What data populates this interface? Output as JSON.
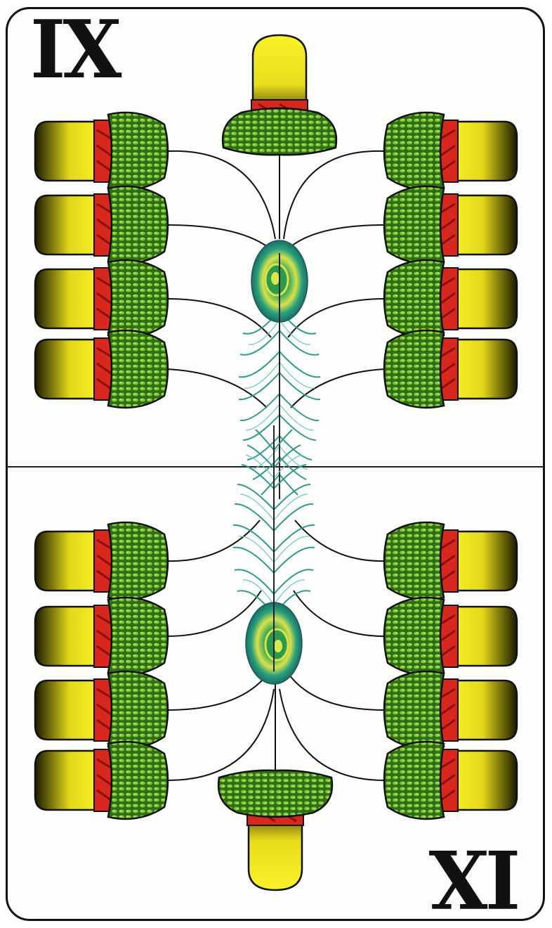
{
  "card": {
    "rank_top": "IX",
    "rank_bottom": "IX",
    "suit": "acorns",
    "acorn_count": 18,
    "colors": {
      "acorn_nut": "#f7ec1c",
      "acorn_cap": "#4f9a22",
      "acorn_band": "#d8271d",
      "feather": "#2f9a8a",
      "feather_eye": "#1f8f3f",
      "outline": "#111111"
    },
    "icons": [
      "acorn-icon",
      "peacock-feather-icon"
    ]
  }
}
